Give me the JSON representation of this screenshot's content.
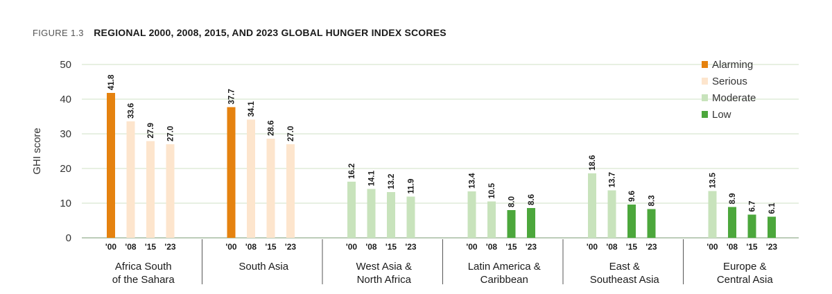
{
  "figure": {
    "number": "FIGURE 1.3",
    "title": "REGIONAL 2000, 2008, 2015, AND 2023 GLOBAL HUNGER INDEX SCORES"
  },
  "chart_data": {
    "type": "bar",
    "ylabel": "GHI score",
    "ylim": [
      0,
      50
    ],
    "yticks": [
      0,
      10,
      20,
      30,
      40,
      50
    ],
    "grid": true,
    "legend_position": "top-right",
    "legend": [
      {
        "name": "Alarming",
        "color": "#e5820f"
      },
      {
        "name": "Serious",
        "color": "#fde5cd"
      },
      {
        "name": "Moderate",
        "color": "#c8e3bc"
      },
      {
        "name": "Low",
        "color": "#4ca73c"
      }
    ],
    "year_labels": [
      "'00",
      "'08",
      "'15",
      "'23"
    ],
    "groups": [
      {
        "label_lines": [
          "Africa South",
          "of the Sahara"
        ],
        "values": [
          41.8,
          33.6,
          27.9,
          27.0
        ],
        "labels": [
          "41.8",
          "33.6",
          "27.9",
          "27.0"
        ],
        "categories": [
          "Alarming",
          "Serious",
          "Serious",
          "Serious"
        ]
      },
      {
        "label_lines": [
          "South Asia"
        ],
        "values": [
          37.7,
          34.1,
          28.6,
          27.0
        ],
        "labels": [
          "37.7",
          "34.1",
          "28.6",
          "27.0"
        ],
        "categories": [
          "Alarming",
          "Serious",
          "Serious",
          "Serious"
        ]
      },
      {
        "label_lines": [
          "West Asia &",
          "North Africa"
        ],
        "values": [
          16.2,
          14.1,
          13.2,
          11.9
        ],
        "labels": [
          "16.2",
          "14.1",
          "13.2",
          "11.9"
        ],
        "categories": [
          "Moderate",
          "Moderate",
          "Moderate",
          "Moderate"
        ]
      },
      {
        "label_lines": [
          "Latin America &",
          "Caribbean"
        ],
        "values": [
          13.4,
          10.5,
          8.0,
          8.6
        ],
        "labels": [
          "13.4",
          "10.5",
          "8.0",
          "8.6"
        ],
        "categories": [
          "Moderate",
          "Moderate",
          "Low",
          "Low"
        ]
      },
      {
        "label_lines": [
          "East &",
          "Southeast Asia"
        ],
        "values": [
          18.6,
          13.7,
          9.6,
          8.3
        ],
        "labels": [
          "18.6",
          "13.7",
          "9.6",
          "8.3"
        ],
        "categories": [
          "Moderate",
          "Moderate",
          "Low",
          "Low"
        ]
      },
      {
        "label_lines": [
          "Europe &",
          "Central Asia"
        ],
        "values": [
          13.5,
          8.9,
          6.7,
          6.1
        ],
        "labels": [
          "13.5",
          "8.9",
          "6.7",
          "6.1"
        ],
        "categories": [
          "Moderate",
          "Low",
          "Low",
          "Low"
        ]
      }
    ]
  }
}
